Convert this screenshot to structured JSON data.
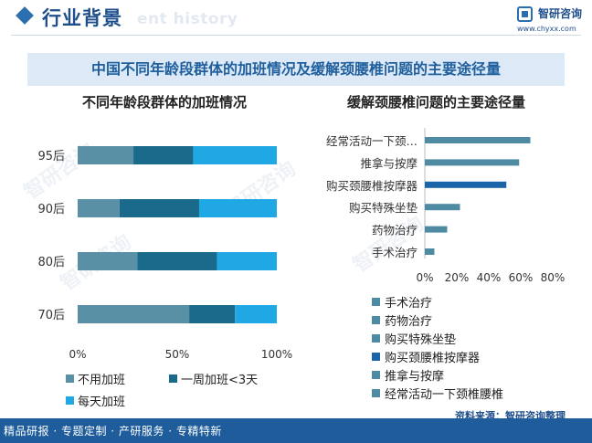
{
  "header": {
    "title": "行业背景",
    "ghost_text": "ent history",
    "logo_text": "智研咨询",
    "url": "www.chyxx.com"
  },
  "banner_title": "中国不同年龄段群体的加班情况及缓解颈腰椎问题的主要途径量",
  "footer": {
    "source": "资料来源：智研咨询整理",
    "slogan": "精品研报 · 专题定制 · 产研服务 · 专精特新"
  },
  "watermark": "智研咨询",
  "colors": {
    "brand": "#1f4e8c",
    "no_overtime": "#5a90a6",
    "weekly_overtime": "#1a6a8c",
    "daily_overtime": "#20a8e4",
    "bar_steel": "#4e8ba3",
    "bar_dark": "#1a64a8"
  },
  "chart_data": [
    {
      "type": "bar",
      "orientation": "horizontal",
      "stacked": "percent",
      "title": "不同年龄段群体的加班情况",
      "categories": [
        "95后",
        "90后",
        "80后",
        "70后"
      ],
      "series": [
        {
          "name": "不用加班",
          "values": [
            28,
            21,
            30,
            56
          ]
        },
        {
          "name": "一周加班<3天",
          "values": [
            30,
            40,
            40,
            23
          ]
        },
        {
          "name": "每天加班",
          "values": [
            42,
            39,
            30,
            21
          ]
        }
      ],
      "x_ticks": [
        "0%",
        "50%",
        "100%"
      ],
      "xlim": [
        0,
        100
      ],
      "grid": false,
      "legend": "bottom"
    },
    {
      "type": "bar",
      "orientation": "horizontal",
      "title": "缓解颈腰椎问题的主要途径量",
      "categories": [
        "经常活动一下颈…",
        "推拿与按摩",
        "购买颈腰椎按摩器",
        "购买特殊坐垫",
        "药物治疗",
        "手术治疗"
      ],
      "values": [
        66,
        59,
        51,
        22,
        14,
        6
      ],
      "highlight_index": 2,
      "x_ticks": [
        "0%",
        "20%",
        "40%",
        "60%",
        "80%"
      ],
      "xlim": [
        0,
        80
      ],
      "grid": false,
      "legend": "bottom",
      "legend_entries": [
        "手术治疗",
        "药物治疗",
        "购买特殊坐垫",
        "购买颈腰椎按摩器",
        "推拿与按摩",
        "经常活动一下颈椎腰椎"
      ]
    }
  ]
}
